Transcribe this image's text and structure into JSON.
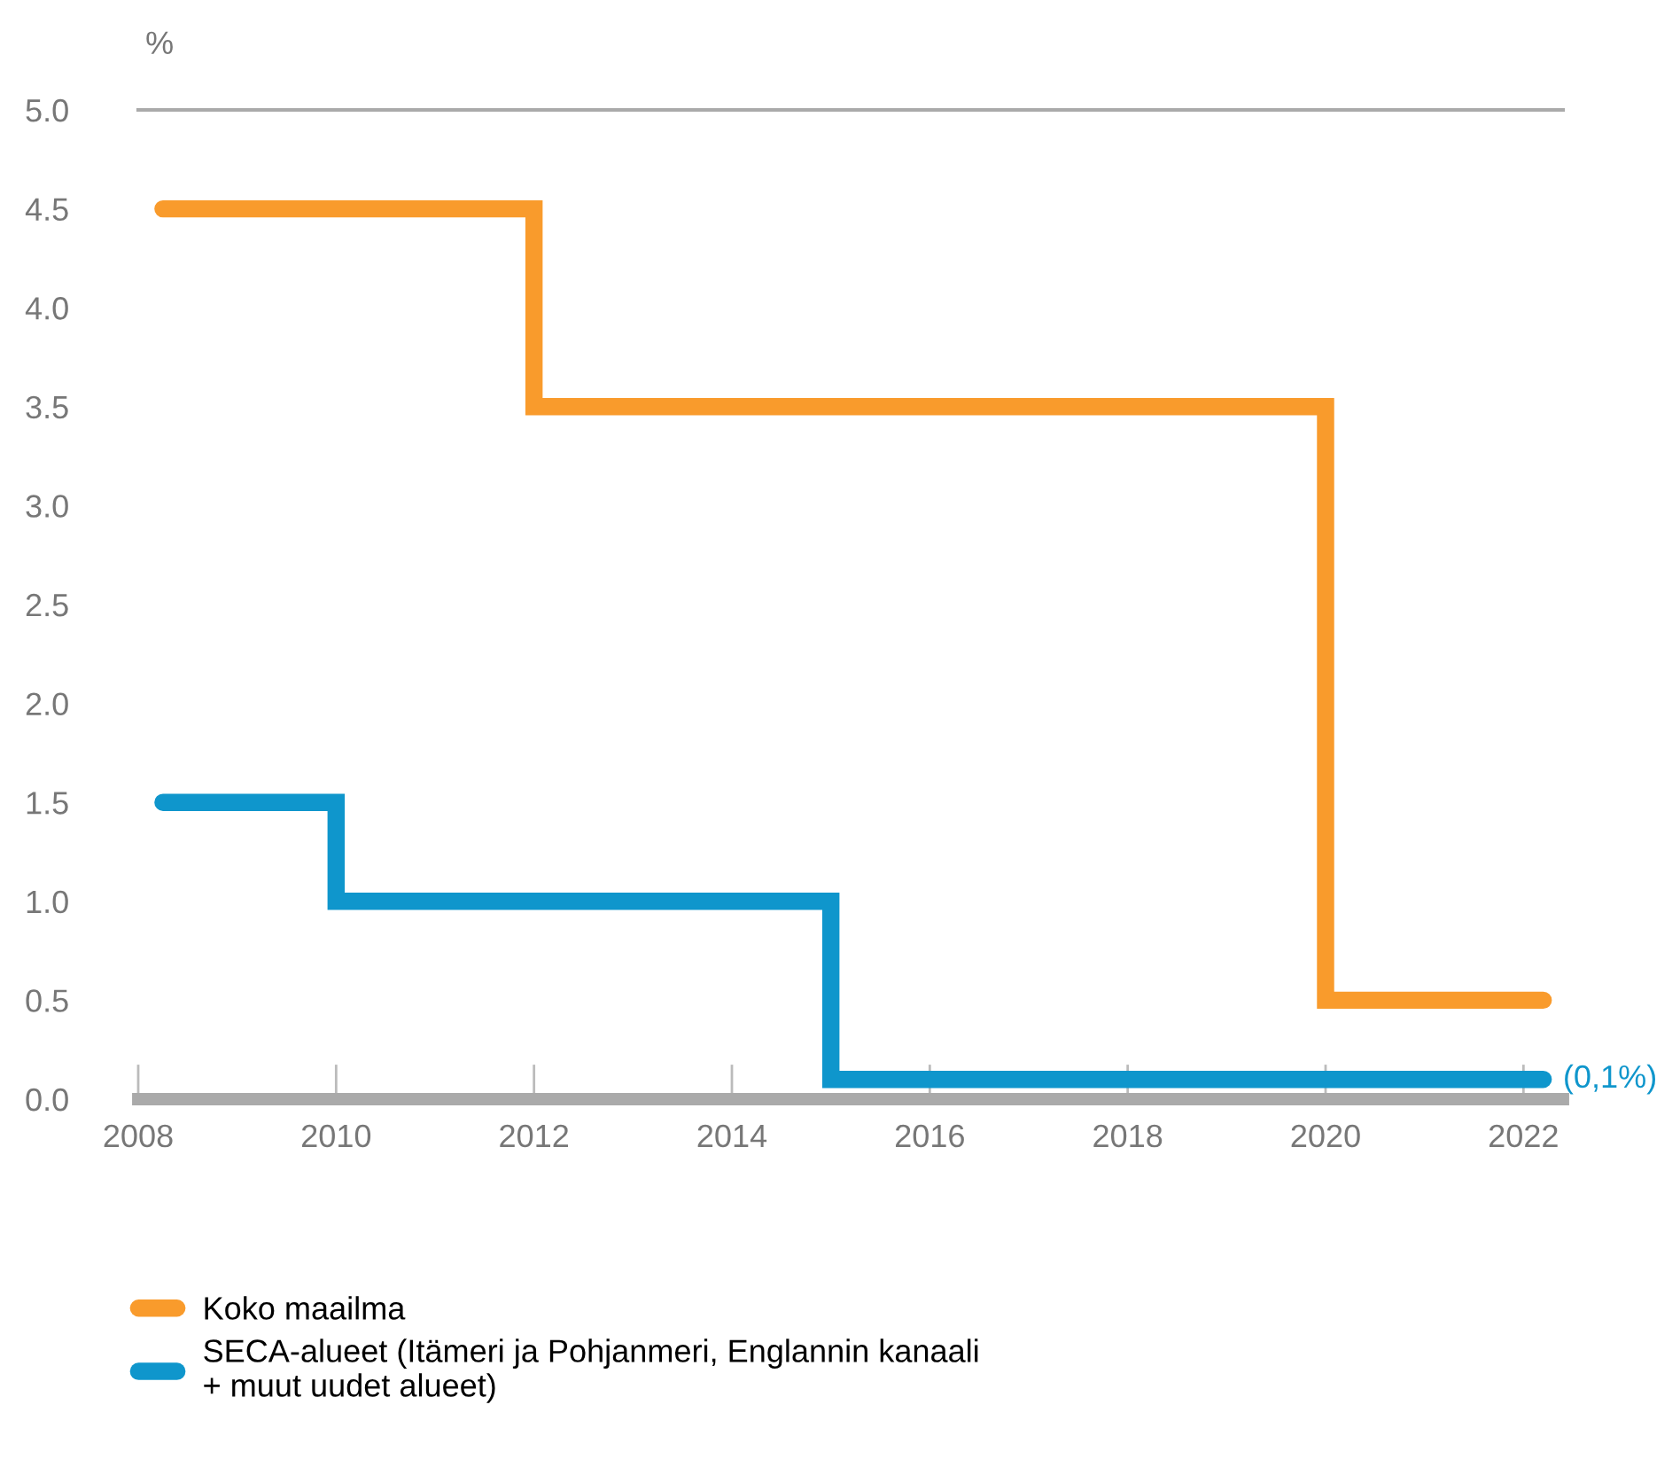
{
  "chart_data": {
    "type": "step",
    "ylabel": "%",
    "series": [
      {
        "name": "Koko maailma",
        "color": "#f99b2c",
        "x": [
          2008.25,
          2012,
          2020,
          2022.2
        ],
        "values": [
          4.5,
          3.5,
          0.5,
          0.5
        ]
      },
      {
        "name": "SECA-alueet (Itämeri ja Pohjanmeri, Englannin kanaali\n+ muut uudet alueet)",
        "color": "#0f96cc",
        "x": [
          2008.25,
          2010,
          2015,
          2022.2
        ],
        "values": [
          1.5,
          1.0,
          0.1,
          0.1
        ]
      }
    ],
    "annotations": [
      {
        "text": "(0,1%)",
        "x": 2022.2,
        "y": 0.1
      }
    ],
    "xlim": [
      2008,
      2022.4
    ],
    "xticks": [
      2008,
      2010,
      2012,
      2014,
      2016,
      2018,
      2020,
      2022
    ],
    "ylim": [
      0,
      5.0
    ],
    "yticks": [
      {
        "value": 0,
        "label": "0.0"
      },
      {
        "value": 0.5,
        "label": "0.5"
      },
      {
        "value": 1,
        "label": "1.0"
      },
      {
        "value": 1.5,
        "label": "1.5"
      },
      {
        "value": 2,
        "label": "2.0"
      },
      {
        "value": 2.5,
        "label": "2.5"
      },
      {
        "value": 3,
        "label": "3.0"
      },
      {
        "value": 3.5,
        "label": "3.5"
      },
      {
        "value": 4,
        "label": "4.0"
      },
      {
        "value": 4.5,
        "label": "4.5"
      },
      {
        "value": 5,
        "label": "5.0"
      }
    ],
    "grid": false,
    "legend": "bottom",
    "marker": "none",
    "line_style": "solid"
  }
}
